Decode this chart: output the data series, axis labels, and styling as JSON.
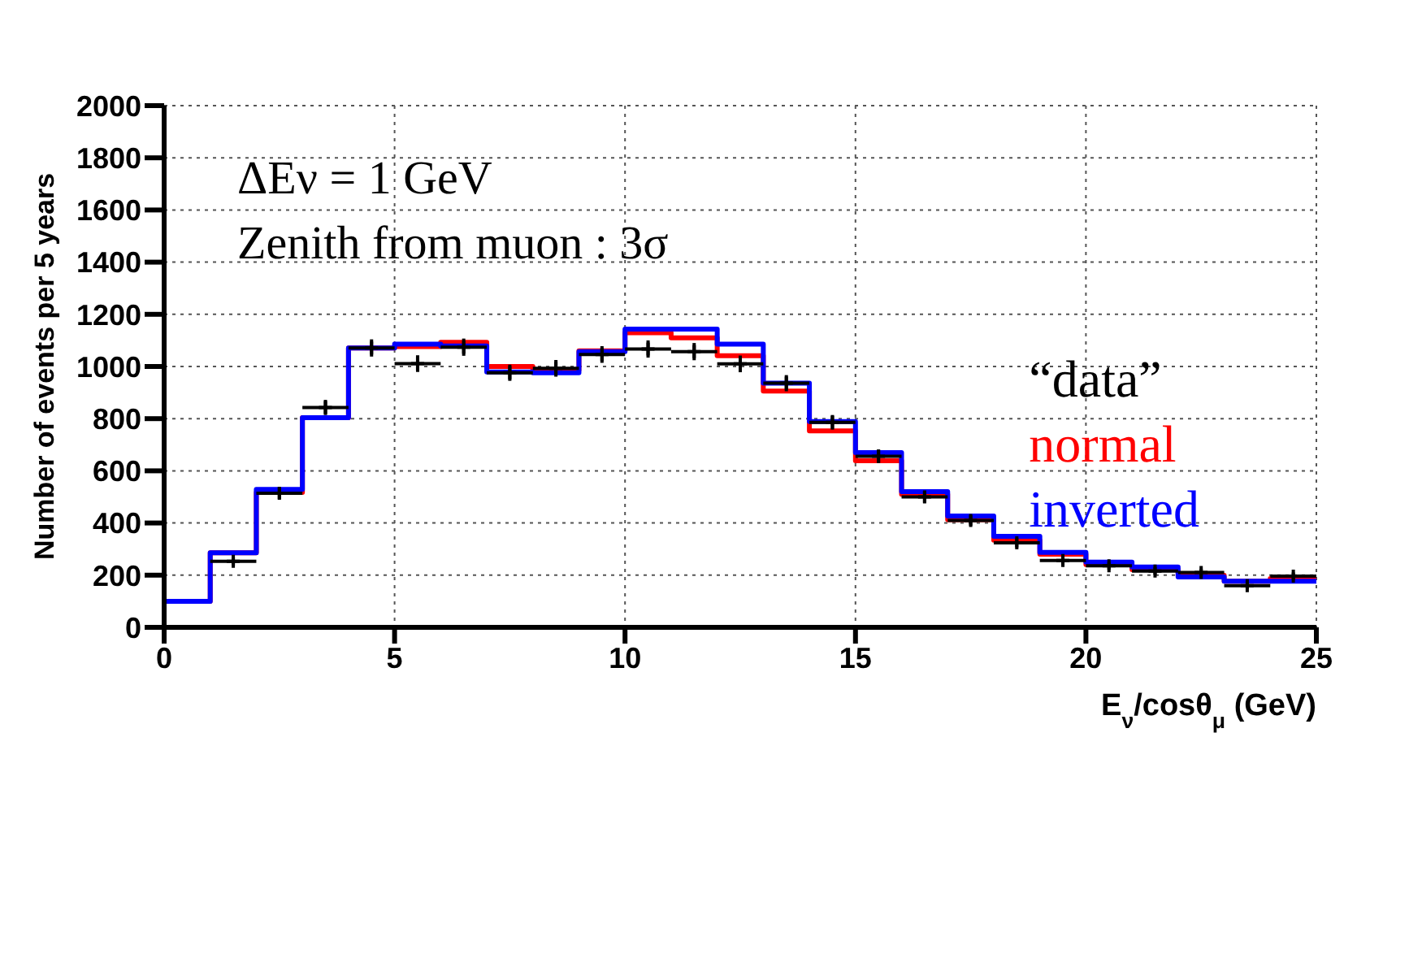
{
  "chart_data": {
    "type": "histogram",
    "xlabel": "E$_{ν}$/cosθ$_{μ}$ (GeV)",
    "ylabel": "Number of events per 5 years",
    "bins": [
      0,
      1,
      2,
      3,
      4,
      5,
      6,
      7,
      8,
      9,
      10,
      11,
      12,
      13,
      14,
      15,
      16,
      17,
      18,
      19,
      20,
      21,
      22,
      23,
      24,
      25
    ],
    "series": [
      {
        "name": "“data”",
        "type": "scatter",
        "color": "#000000",
        "x": [
          1.5,
          2.5,
          3.5,
          4.5,
          5.5,
          6.5,
          7.5,
          8.5,
          9.5,
          10.5,
          11.5,
          12.5,
          13.5,
          14.5,
          15.5,
          16.5,
          17.5,
          18.5,
          19.5,
          20.5,
          21.5,
          22.5,
          23.5,
          24.5
        ],
        "values": [
          253,
          514,
          843,
          1071,
          1011,
          1074,
          976,
          993,
          1046,
          1067,
          1057,
          1010,
          936,
          786,
          656,
          500,
          410,
          324,
          256,
          236,
          216,
          210,
          160,
          196
        ],
        "errors": [
          16,
          23,
          29,
          33,
          32,
          33,
          31,
          32,
          32,
          33,
          33,
          32,
          31,
          28,
          26,
          22,
          20,
          18,
          16,
          15,
          15,
          14,
          13,
          14
        ],
        "xerrors": [
          0.5,
          0.5,
          0.5,
          0.5,
          0.5,
          0.5,
          0.5,
          0.5,
          0.5,
          0.5,
          0.5,
          0.5,
          0.5,
          0.5,
          0.5,
          0.5,
          0.5,
          0.5,
          0.5,
          0.5,
          0.5,
          0.5,
          0.5,
          0.5
        ],
        "marker": "cross"
      },
      {
        "name": "normal",
        "color": "#ff0000",
        "values": [
          100,
          286,
          517,
          804,
          1071,
          1076,
          1093,
          1000,
          986,
          1060,
          1129,
          1110,
          1041,
          906,
          753,
          639,
          510,
          413,
          334,
          280,
          241,
          221,
          199,
          177,
          187
        ]
      },
      {
        "name": "inverted",
        "color": "#0000ff",
        "values": [
          100,
          286,
          529,
          804,
          1071,
          1086,
          1079,
          979,
          976,
          1057,
          1143,
          1143,
          1086,
          936,
          789,
          670,
          520,
          427,
          349,
          287,
          250,
          231,
          193,
          177,
          177
        ]
      }
    ],
    "xlim": [
      0,
      25
    ],
    "xticks": [
      0,
      5,
      10,
      15,
      20,
      25
    ],
    "ylim": [
      0,
      2000
    ],
    "yticks": [
      0,
      200,
      400,
      600,
      800,
      1000,
      1200,
      1400,
      1600,
      1800,
      2000
    ],
    "grid": true,
    "legend": "right",
    "annotations": [
      "ΔEν = 1 GeV",
      "Zenith from muon : 3σ"
    ]
  }
}
